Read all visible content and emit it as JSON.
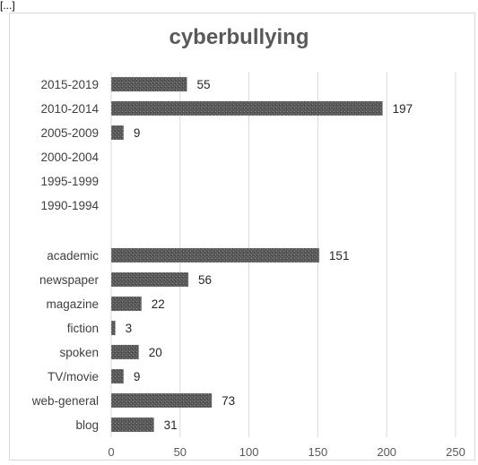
{
  "page_top_mark": "[...]",
  "chart_data": {
    "type": "bar",
    "orientation": "horizontal",
    "title": "cyberbullying",
    "xlabel": "",
    "ylabel": "",
    "xlim": [
      0,
      250
    ],
    "x_ticks": [
      0,
      50,
      100,
      150,
      200,
      250
    ],
    "grid": true,
    "legend": "none",
    "bar_color": "#595959",
    "groups": [
      {
        "categories": [
          "2015-2019",
          "2010-2014",
          "2005-2009",
          "2000-2004",
          "1995-1999",
          "1990-1994"
        ],
        "values": [
          55,
          197,
          9,
          null,
          null,
          null
        ]
      },
      {
        "categories": [
          "academic",
          "newspaper",
          "magazine",
          "fiction",
          "spoken",
          "TV/movie",
          "web-general",
          "blog"
        ],
        "values": [
          151,
          56,
          22,
          3,
          20,
          9,
          73,
          31
        ]
      }
    ]
  }
}
